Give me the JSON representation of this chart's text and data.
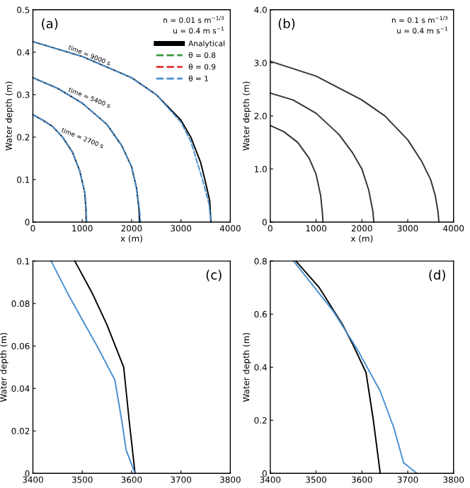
{
  "chart_data": [
    {
      "type": "line",
      "title": "(a)",
      "ylabel": "Water depth (m)",
      "xlabel": "x (m)",
      "xlim": [
        0,
        4000
      ],
      "ylim": [
        0,
        0.5
      ],
      "xticks": [
        0,
        1000,
        2000,
        3000,
        4000
      ],
      "yticks": [
        0,
        0.1,
        0.2,
        0.3,
        0.4,
        0.5
      ],
      "legend": "top right",
      "annotations": [
        "n = 0.01 s m$^{−1/3}$",
        "u = 0.4 m s$^{−1}$",
        "time = 9000 s",
        "time = 5400 s",
        "time = 2700 s"
      ],
      "series": [
        {
          "name": "Analytical",
          "color": "#000000",
          "line_style": "solid",
          "x": [
            0,
            200,
            400,
            600,
            800,
            950,
            1050,
            1075,
            1080
          ],
          "values": [
            0.253,
            0.24,
            0.225,
            0.2,
            0.165,
            0.12,
            0.07,
            0.03,
            0
          ]
        },
        {
          "color": "#000000",
          "line_style": "solid",
          "x": [
            0,
            500,
            1000,
            1500,
            1800,
            2000,
            2100,
            2150,
            2160
          ],
          "values": [
            0.34,
            0.315,
            0.28,
            0.23,
            0.18,
            0.13,
            0.08,
            0.03,
            0
          ]
        },
        {
          "color": "#000000",
          "line_style": "solid",
          "x": [
            0,
            1000,
            2000,
            2500,
            3000,
            3200,
            3400,
            3485,
            3584,
            3607
          ],
          "values": [
            0.425,
            0.39,
            0.34,
            0.3,
            0.24,
            0.2,
            0.14,
            0.1,
            0.05,
            0
          ]
        },
        {
          "name": "θ = 0.8",
          "color": "#3a9a3a",
          "line_style": "dashed"
        },
        {
          "name": "θ = 0.9",
          "color": "#e03030",
          "line_style": "dashed"
        },
        {
          "name": "θ = 1",
          "color": "#4a90d0",
          "line_style": "dashed",
          "x": [
            0,
            200,
            400,
            600,
            800,
            950,
            1050,
            1080,
            1090
          ],
          "values": [
            0.253,
            0.24,
            0.225,
            0.2,
            0.165,
            0.12,
            0.07,
            0.03,
            0
          ]
        },
        {
          "color": "#4a90d0",
          "line_style": "dashed",
          "x": [
            0,
            500,
            1000,
            1500,
            1800,
            2000,
            2100,
            2160,
            2180
          ],
          "values": [
            0.34,
            0.315,
            0.28,
            0.23,
            0.18,
            0.13,
            0.08,
            0.03,
            0
          ]
        },
        {
          "color": "#4a90d0",
          "line_style": "dashed",
          "x": [
            0,
            1000,
            2000,
            2500,
            3000,
            3200,
            3437,
            3501,
            3566,
            3607
          ],
          "values": [
            0.425,
            0.39,
            0.34,
            0.3,
            0.235,
            0.19,
            0.1,
            0.072,
            0.044,
            0
          ]
        }
      ]
    },
    {
      "type": "line",
      "title": "(b)",
      "ylabel": "Water depth (m)",
      "xlabel": "x (m)",
      "xlim": [
        0,
        4000
      ],
      "ylim": [
        0,
        4
      ],
      "xticks": [
        0,
        1000,
        2000,
        3000,
        4000
      ],
      "yticks": [
        0,
        {
          "value": 1,
          "label": "1.0"
        },
        {
          "value": 2,
          "label": "2.0"
        },
        {
          "value": 3,
          "label": "3.0"
        },
        {
          "value": 4,
          "label": "4.0"
        }
      ],
      "annotations": [
        "n = 0.1 s m$^{−1/3}$",
        "u = 0.4 m s$^{−1}$"
      ],
      "series": [
        {
          "color": "#333333",
          "line_style": "solid",
          "x": [
            0,
            300,
            600,
            850,
            1000,
            1100,
            1140,
            1150
          ],
          "values": [
            1.82,
            1.7,
            1.5,
            1.2,
            0.9,
            0.5,
            0.15,
            0
          ]
        },
        {
          "color": "#333333",
          "line_style": "solid",
          "x": [
            0,
            500,
            1000,
            1500,
            1800,
            2000,
            2150,
            2240,
            2260
          ],
          "values": [
            2.43,
            2.3,
            2.05,
            1.65,
            1.3,
            1.0,
            0.6,
            0.2,
            0
          ]
        },
        {
          "color": "#333333",
          "line_style": "solid",
          "x": [
            0,
            1000,
            2000,
            2500,
            3000,
            3300,
            3500,
            3600,
            3660,
            3680
          ],
          "values": [
            3.03,
            2.75,
            2.3,
            2.0,
            1.55,
            1.15,
            0.8,
            0.5,
            0.2,
            0
          ]
        }
      ]
    },
    {
      "type": "line",
      "title": "(c)",
      "ylabel": "Water depth (m)",
      "xlim": [
        3400,
        3800
      ],
      "ylim": [
        0,
        0.1
      ],
      "xticks": [
        3400,
        3500,
        3600,
        3700,
        3800
      ],
      "yticks": [
        0,
        0.02,
        0.04,
        0.06,
        0.08,
        0.1
      ],
      "series": [
        {
          "color": "#000000",
          "line_style": "solid",
          "x": [
            3485,
            3520,
            3550,
            3584,
            3595,
            3607
          ],
          "values": [
            0.1,
            0.085,
            0.07,
            0.05,
            0.025,
            0
          ]
        },
        {
          "color": "#4a90d0",
          "line_style": "solid",
          "x": [
            3437,
            3470,
            3501,
            3530,
            3566,
            3580,
            3589,
            3607
          ],
          "values": [
            0.1,
            0.085,
            0.072,
            0.06,
            0.044,
            0.025,
            0.011,
            0
          ]
        }
      ]
    },
    {
      "type": "line",
      "title": "(d)",
      "ylabel": "Water depth (m)",
      "xlim": [
        3400,
        3800
      ],
      "ylim": [
        0,
        0.8
      ],
      "xticks": [
        3400,
        3500,
        3600,
        3700,
        3800
      ],
      "yticks": [
        0,
        0.2,
        0.4,
        0.6,
        0.8
      ],
      "series": [
        {
          "color": "#000000",
          "line_style": "solid",
          "x": [
            3456,
            3507,
            3558,
            3579,
            3609,
            3625,
            3640
          ],
          "values": [
            0.8,
            0.7,
            0.56,
            0.49,
            0.38,
            0.2,
            0
          ]
        },
        {
          "color": "#4a90d0",
          "line_style": "solid",
          "x": [
            3451,
            3538,
            3589,
            3640,
            3670,
            3691,
            3720
          ],
          "values": [
            0.8,
            0.61,
            0.47,
            0.31,
            0.17,
            0.04,
            0
          ]
        }
      ]
    }
  ]
}
